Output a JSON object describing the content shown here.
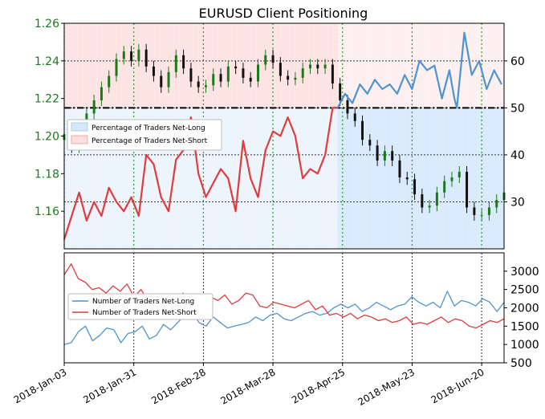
{
  "chart_data": [
    {
      "type": "line",
      "title": "EURUSD Client Positioning",
      "x_tick_labels": [
        "2018-Jan-03",
        "2018-Jan-31",
        "2018-Feb-28",
        "2018-Mar-28",
        "2018-Apr-25",
        "2018-May-23",
        "2018-Jun-20"
      ],
      "x_range": [
        "2018-Jan-03",
        "2018-Jun-29"
      ],
      "y_left": {
        "label": "",
        "range": [
          1.14,
          1.26
        ],
        "ticks": [
          "1.16",
          "1.18",
          "1.20",
          "1.22",
          "1.24",
          "1.26"
        ],
        "color": "#1a7a1a"
      },
      "y_right": {
        "label": "",
        "range": [
          20,
          68
        ],
        "ticks": [
          "30",
          "40",
          "50",
          "60"
        ]
      },
      "reference_line": {
        "value": 50,
        "style": "dash-dot"
      },
      "grid": true,
      "legend": {
        "position": "upper-left",
        "entries": [
          "Percentage of Traders Net-Long",
          "Percentage of Traders Net-Short"
        ]
      },
      "series": [
        {
          "name": "Percentage of Traders Net-Long",
          "color": "#4d94d1",
          "fill": "#d6e9fb",
          "x": [
            "2018-Apr-23",
            "2018-Apr-26",
            "2018-Apr-29",
            "2018-May-02",
            "2018-May-05",
            "2018-May-08",
            "2018-May-11",
            "2018-May-14",
            "2018-May-17",
            "2018-May-20",
            "2018-May-23",
            "2018-May-26",
            "2018-May-29",
            "2018-Jun-01",
            "2018-Jun-04",
            "2018-Jun-07",
            "2018-Jun-09",
            "2018-Jun-10",
            "2018-Jun-13",
            "2018-Jun-16",
            "2018-Jun-19",
            "2018-Jun-22",
            "2018-Jun-25",
            "2018-Jun-28"
          ],
          "values": [
            50,
            53,
            51,
            55,
            53,
            56,
            54,
            55,
            53,
            57,
            54,
            60,
            58,
            59,
            52,
            58,
            52,
            50,
            66,
            57,
            60,
            54,
            58,
            55
          ]
        },
        {
          "name": "Percentage of Traders Net-Short",
          "color": "#e03c3c",
          "fill": "#fde0e0",
          "x": [
            "2018-Jan-03",
            "2018-Jan-06",
            "2018-Jan-09",
            "2018-Jan-12",
            "2018-Jan-15",
            "2018-Jan-18",
            "2018-Jan-21",
            "2018-Jan-24",
            "2018-Jan-27",
            "2018-Jan-30",
            "2018-Feb-02",
            "2018-Feb-05",
            "2018-Feb-08",
            "2018-Feb-11",
            "2018-Feb-14",
            "2018-Feb-17",
            "2018-Feb-20",
            "2018-Feb-23",
            "2018-Feb-26",
            "2018-Mar-01",
            "2018-Mar-04",
            "2018-Mar-07",
            "2018-Mar-10",
            "2018-Mar-13",
            "2018-Mar-16",
            "2018-Mar-19",
            "2018-Mar-22",
            "2018-Mar-25",
            "2018-Mar-28",
            "2018-Mar-31",
            "2018-Apr-03",
            "2018-Apr-06",
            "2018-Apr-09",
            "2018-Apr-12",
            "2018-Apr-15",
            "2018-Apr-18",
            "2018-Apr-21",
            "2018-Apr-23"
          ],
          "values": [
            22,
            27,
            32,
            26,
            30,
            27,
            33,
            30,
            28,
            31,
            27,
            40,
            38,
            31,
            28,
            39,
            41,
            48,
            36,
            31,
            34,
            37,
            35,
            28,
            43,
            35,
            31,
            41,
            45,
            44,
            48,
            44,
            35,
            37,
            36,
            40,
            50,
            50
          ]
        }
      ],
      "price_series": {
        "name": "EURUSD",
        "up_color": "#1a7a1a",
        "down_color": "#111111",
        "x": [
          "2018-Jan-03",
          "2018-Jan-06",
          "2018-Jan-09",
          "2018-Jan-12",
          "2018-Jan-15",
          "2018-Jan-18",
          "2018-Jan-21",
          "2018-Jan-24",
          "2018-Jan-27",
          "2018-Jan-30",
          "2018-Feb-02",
          "2018-Feb-05",
          "2018-Feb-08",
          "2018-Feb-11",
          "2018-Feb-14",
          "2018-Feb-17",
          "2018-Feb-20",
          "2018-Feb-23",
          "2018-Feb-26",
          "2018-Mar-01",
          "2018-Mar-04",
          "2018-Mar-07",
          "2018-Mar-10",
          "2018-Mar-13",
          "2018-Mar-16",
          "2018-Mar-19",
          "2018-Mar-22",
          "2018-Mar-25",
          "2018-Mar-28",
          "2018-Mar-31",
          "2018-Apr-03",
          "2018-Apr-06",
          "2018-Apr-09",
          "2018-Apr-12",
          "2018-Apr-15",
          "2018-Apr-18",
          "2018-Apr-21",
          "2018-Apr-24",
          "2018-Apr-27",
          "2018-Apr-30",
          "2018-May-03",
          "2018-May-06",
          "2018-May-09",
          "2018-May-12",
          "2018-May-15",
          "2018-May-18",
          "2018-May-21",
          "2018-May-24",
          "2018-May-27",
          "2018-May-30",
          "2018-Jun-02",
          "2018-Jun-05",
          "2018-Jun-08",
          "2018-Jun-11",
          "2018-Jun-14",
          "2018-Jun-17",
          "2018-Jun-20",
          "2018-Jun-23",
          "2018-Jun-26",
          "2018-Jun-29"
        ],
        "close": [
          1.201,
          1.194,
          1.198,
          1.212,
          1.219,
          1.226,
          1.232,
          1.241,
          1.245,
          1.24,
          1.246,
          1.237,
          1.232,
          1.226,
          1.234,
          1.243,
          1.236,
          1.229,
          1.226,
          1.227,
          1.233,
          1.229,
          1.237,
          1.236,
          1.231,
          1.229,
          1.238,
          1.243,
          1.239,
          1.232,
          1.23,
          1.231,
          1.236,
          1.238,
          1.236,
          1.238,
          1.228,
          1.219,
          1.212,
          1.208,
          1.198,
          1.195,
          1.187,
          1.192,
          1.187,
          1.178,
          1.177,
          1.169,
          1.162,
          1.163,
          1.17,
          1.176,
          1.178,
          1.181,
          1.162,
          1.158,
          1.158,
          1.162,
          1.166,
          1.17
        ]
      }
    },
    {
      "type": "line",
      "x_tick_labels": [
        "2018-Jan-03",
        "2018-Jan-31",
        "2018-Feb-28",
        "2018-Mar-28",
        "2018-Apr-25",
        "2018-May-23",
        "2018-Jun-20"
      ],
      "y_range": [
        500,
        3500
      ],
      "y_ticks": [
        "500",
        "1000",
        "1500",
        "2000",
        "2500",
        "3000"
      ],
      "grid": true,
      "legend": {
        "position": "center-left",
        "entries": [
          "Number of Traders Net-Long",
          "Number of Traders Net-Short"
        ]
      },
      "series": [
        {
          "name": "Number of Traders Net-Long",
          "color": "#4d94d1",
          "values": [
            1000,
            1050,
            1350,
            1500,
            1100,
            1250,
            1450,
            1400,
            1050,
            1300,
            1350,
            1500,
            1150,
            1250,
            1550,
            1400,
            1600,
            1800,
            1900,
            1600,
            1500,
            1750,
            1600,
            1450,
            1500,
            1550,
            1600,
            1750,
            1650,
            1800,
            1850,
            1700,
            1650,
            1750,
            1850,
            1900,
            1800,
            1850,
            2000,
            2100,
            2000,
            2100,
            1900,
            2000,
            2150,
            2050,
            1950,
            2050,
            2100,
            2300,
            2150,
            2050,
            2150,
            2000,
            2450,
            2050,
            2200,
            2150,
            2050,
            2250,
            2150,
            1900,
            2150
          ]
        },
        {
          "name": "Number of Traders Net-Short",
          "color": "#e03c3c",
          "values": [
            2900,
            3200,
            2800,
            2700,
            2500,
            2550,
            2400,
            2600,
            2450,
            2650,
            2300,
            2500,
            2200,
            2350,
            2300,
            2250,
            2200,
            2400,
            2250,
            2100,
            2250,
            2300,
            2200,
            2350,
            2100,
            2200,
            2400,
            2350,
            2050,
            2000,
            2150,
            2100,
            2050,
            2000,
            2100,
            2200,
            1950,
            2050,
            1800,
            1850,
            1750,
            1850,
            1700,
            1800,
            1750,
            1650,
            1700,
            1600,
            1650,
            1750,
            1550,
            1600,
            1550,
            1650,
            1750,
            1600,
            1700,
            1650,
            1500,
            1450,
            1550,
            1650,
            1600,
            1700
          ]
        }
      ]
    }
  ]
}
